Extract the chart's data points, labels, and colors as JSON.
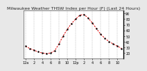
{
  "title": "Milwaukee Weather THSW Index per Hour (F) (Last 24 Hours)",
  "hours": [
    0,
    1,
    2,
    3,
    4,
    5,
    6,
    7,
    8,
    9,
    10,
    11,
    12,
    13,
    14,
    15,
    16,
    17,
    18,
    19,
    20,
    21,
    22,
    23
  ],
  "values": [
    32,
    28,
    25,
    22,
    20,
    19,
    20,
    24,
    36,
    50,
    62,
    72,
    80,
    87,
    88,
    82,
    73,
    63,
    53,
    46,
    40,
    36,
    32,
    28
  ],
  "line_color": "#dd0000",
  "marker_color": "#000000",
  "bg_color": "#e8e8e8",
  "plot_bg": "#ffffff",
  "grid_color": "#888888",
  "ylim": [
    10,
    95
  ],
  "yticks": [
    20,
    30,
    40,
    50,
    60,
    70,
    80,
    90
  ],
  "ytick_labels": [
    "20",
    "30",
    "40",
    "50",
    "60",
    "70",
    "80",
    "90"
  ],
  "xtick_hours": [
    0,
    2,
    4,
    6,
    8,
    10,
    12,
    14,
    16,
    18,
    20,
    22
  ],
  "xtick_labels": [
    "12a",
    "2",
    "4",
    "6",
    "8",
    "10",
    "12p",
    "2",
    "4",
    "6",
    "8",
    "10"
  ],
  "title_fontsize": 4.5,
  "tick_fontsize": 3.5,
  "line_width": 0.7,
  "marker_size": 1.5
}
